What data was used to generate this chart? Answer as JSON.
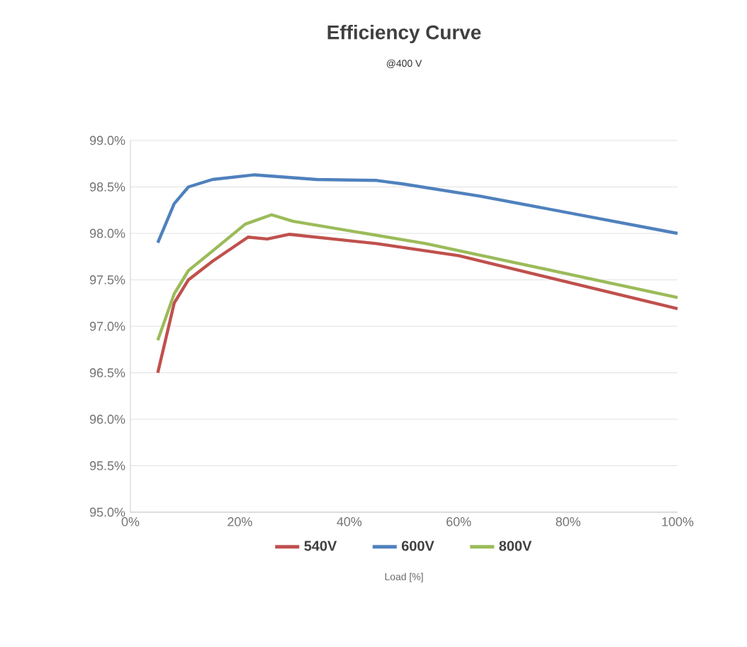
{
  "chart_data": {
    "type": "line",
    "title": "Efficiency Curve",
    "subtitle": "@400 V",
    "xlabel": "Load [%]",
    "xlim": [
      0,
      100
    ],
    "ylim": [
      95.0,
      99.0
    ],
    "xticks": [
      {
        "value": 0,
        "label": "0%"
      },
      {
        "value": 20,
        "label": "20%"
      },
      {
        "value": 40,
        "label": "40%"
      },
      {
        "value": 60,
        "label": "60%"
      },
      {
        "value": 80,
        "label": "80%"
      },
      {
        "value": 100,
        "label": "100%"
      }
    ],
    "yticks": [
      {
        "value": 95.0,
        "label": "95.0%"
      },
      {
        "value": 95.5,
        "label": "95.5%"
      },
      {
        "value": 96.0,
        "label": "96.0%"
      },
      {
        "value": 96.5,
        "label": "96.5%"
      },
      {
        "value": 97.0,
        "label": "97.0%"
      },
      {
        "value": 97.5,
        "label": "97.5%"
      },
      {
        "value": 98.0,
        "label": "98.0%"
      },
      {
        "value": 98.5,
        "label": "98.5%"
      },
      {
        "value": 99.0,
        "label": "99.0%"
      }
    ],
    "grid": "y",
    "legend": "bottom",
    "marker": "none",
    "line_style": "solid",
    "series": [
      {
        "name": "540V",
        "color": "#c0504d",
        "x": [
          5,
          8,
          10.6,
          15,
          21.5,
          25,
          29,
          45,
          60,
          100
        ],
        "values": [
          96.5,
          97.25,
          97.5,
          97.7,
          97.96,
          97.94,
          97.99,
          97.89,
          97.76,
          97.19
        ]
      },
      {
        "name": "600V",
        "color": "#4f81bd",
        "x": [
          5,
          8,
          10.6,
          15,
          22.7,
          34,
          45,
          50,
          64,
          100
        ],
        "values": [
          97.9,
          98.32,
          98.5,
          98.58,
          98.63,
          98.58,
          98.57,
          98.53,
          98.4,
          98.0
        ]
      },
      {
        "name": "800V",
        "color": "#9bbb59",
        "x": [
          5,
          8,
          10.6,
          15,
          21,
          25.8,
          29.7,
          54,
          100
        ],
        "values": [
          96.85,
          97.35,
          97.6,
          97.81,
          98.1,
          98.2,
          98.13,
          97.89,
          97.31
        ]
      }
    ]
  }
}
